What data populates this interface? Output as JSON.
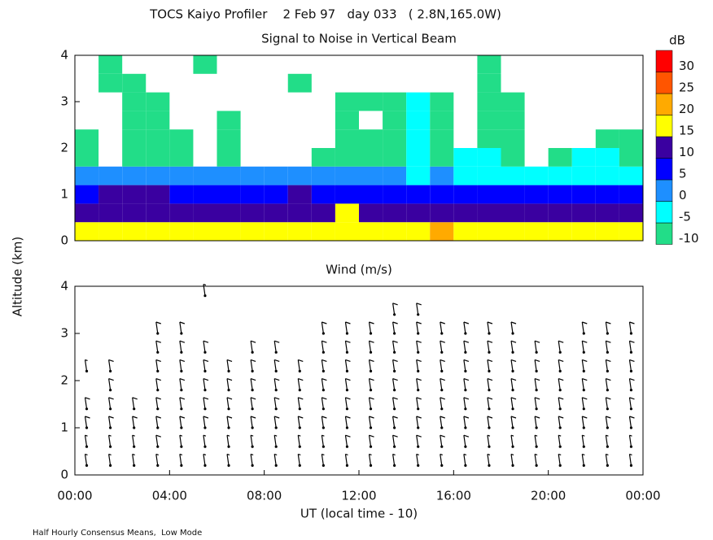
{
  "title": "TOCS Kaiyo Profiler    2 Feb 97   day 033   ( 2.8N,165.0W)",
  "y_label": "Altitude (km)",
  "x_label": "UT (local time - 10)",
  "footer": "Half Hourly Consensus Means,  Low Mode",
  "chart_data": [
    {
      "type": "heatmap",
      "title": "Signal to Noise in Vertical Beam",
      "colorbar": {
        "title": "dB",
        "levels": [
          -10,
          -5,
          0,
          5,
          10,
          15,
          20,
          25,
          30
        ],
        "colors": [
          "#22dd88",
          "#00ffff",
          "#1e8fff",
          "#0000ff",
          "#3a00a0",
          "#ffff00",
          "#ffaa00",
          "#ff5500",
          "#ff0000"
        ]
      },
      "x": [
        0.5,
        1.5,
        2.5,
        3.5,
        4.5,
        5.5,
        6.5,
        7.5,
        8.5,
        9.5,
        10.5,
        11.5,
        12.5,
        13.5,
        14.5,
        15.5,
        16.5,
        17.5,
        18.5,
        19.5,
        20.5,
        21.5,
        22.5,
        23.5
      ],
      "y": [
        0.2,
        0.6,
        1.0,
        1.4,
        1.8,
        2.2,
        2.6,
        3.0,
        3.4,
        3.8
      ],
      "values": [
        [
          16,
          16,
          16,
          16,
          16,
          16,
          16,
          16,
          16,
          16,
          16,
          16,
          17,
          16,
          16,
          22,
          16,
          16,
          17,
          16,
          16,
          16,
          16,
          16
        ],
        [
          11,
          11,
          11,
          12,
          11,
          11,
          11,
          11,
          11,
          11,
          11,
          15,
          12,
          11,
          11,
          12,
          11,
          11,
          12,
          11,
          11,
          11,
          12,
          11
        ],
        [
          7,
          10,
          10,
          10,
          8,
          7,
          7,
          7,
          8,
          10,
          7,
          7,
          7,
          7,
          7,
          7,
          7,
          7,
          7,
          7,
          7,
          7,
          7,
          7
        ],
        [
          2,
          2,
          2,
          2,
          2,
          2,
          2,
          2,
          2,
          2,
          2,
          2,
          2,
          2,
          -3,
          2,
          -3,
          -3,
          -3,
          -3,
          -3,
          -3,
          -3,
          -3
        ],
        [
          -8,
          null,
          -8,
          -8,
          -8,
          null,
          -8,
          null,
          null,
          null,
          -8,
          -8,
          -8,
          -8,
          -3,
          -8,
          -3,
          -3,
          -8,
          null,
          -8,
          -3,
          -3,
          -8
        ],
        [
          -8,
          null,
          -8,
          -8,
          -8,
          null,
          -8,
          null,
          null,
          null,
          null,
          -8,
          -8,
          -8,
          -3,
          -8,
          null,
          -8,
          -8,
          null,
          null,
          null,
          -8,
          -8
        ],
        [
          null,
          null,
          -8,
          -8,
          null,
          null,
          -8,
          null,
          null,
          null,
          null,
          -8,
          null,
          -8,
          -3,
          -8,
          null,
          -8,
          -8,
          null,
          null,
          null,
          null,
          null
        ],
        [
          null,
          null,
          -8,
          -8,
          null,
          null,
          null,
          null,
          null,
          null,
          null,
          -8,
          -8,
          -8,
          -3,
          -8,
          null,
          -8,
          -8,
          null,
          null,
          null,
          null,
          null
        ],
        [
          null,
          -8,
          -8,
          null,
          null,
          null,
          null,
          null,
          null,
          -8,
          null,
          null,
          null,
          null,
          null,
          null,
          null,
          -8,
          null,
          null,
          null,
          null,
          null,
          null
        ],
        [
          null,
          -8,
          null,
          null,
          null,
          -8,
          null,
          null,
          null,
          null,
          null,
          null,
          null,
          null,
          null,
          null,
          null,
          -8,
          null,
          null,
          null,
          null,
          null,
          null
        ]
      ],
      "xlim": [
        0,
        24
      ],
      "ylim": [
        0,
        4
      ],
      "yticks": [
        0,
        1,
        2,
        3,
        4
      ]
    },
    {
      "type": "barbs",
      "title": "Wind (m/s)",
      "color": "#000000",
      "x": [
        0.5,
        1.5,
        2.5,
        3.5,
        4.5,
        5.5,
        6.5,
        7.5,
        8.5,
        9.5,
        10.5,
        11.5,
        12.5,
        13.5,
        14.5,
        15.5,
        16.5,
        17.5,
        18.5,
        19.5,
        20.5,
        21.5,
        22.5,
        23.5
      ],
      "y": [
        0.2,
        0.6,
        1.0,
        1.4,
        1.8,
        2.2,
        2.6,
        3.0,
        3.4,
        3.8
      ],
      "values": [
        [
          5,
          5,
          5,
          5,
          5,
          5,
          5,
          5,
          5,
          5,
          5,
          5,
          5,
          5,
          5,
          5,
          5,
          5,
          5,
          5,
          5,
          5,
          5,
          5
        ],
        [
          5,
          5,
          5,
          10,
          5,
          5,
          5,
          5,
          5,
          5,
          5,
          10,
          10,
          10,
          10,
          10,
          10,
          5,
          5,
          5,
          5,
          5,
          5,
          5
        ],
        [
          10,
          10,
          10,
          10,
          10,
          10,
          10,
          10,
          10,
          10,
          10,
          10,
          10,
          10,
          10,
          10,
          10,
          10,
          10,
          10,
          10,
          10,
          10,
          10
        ],
        [
          10,
          10,
          10,
          10,
          10,
          10,
          10,
          10,
          10,
          10,
          10,
          10,
          10,
          10,
          10,
          10,
          10,
          10,
          10,
          10,
          10,
          10,
          10,
          10
        ],
        [
          null,
          10,
          null,
          10,
          10,
          10,
          10,
          10,
          10,
          10,
          10,
          10,
          10,
          10,
          10,
          10,
          10,
          10,
          10,
          10,
          10,
          10,
          10,
          10
        ],
        [
          5,
          10,
          null,
          10,
          10,
          10,
          10,
          10,
          10,
          10,
          10,
          10,
          10,
          10,
          10,
          10,
          10,
          10,
          10,
          10,
          10,
          10,
          10,
          10
        ],
        [
          null,
          null,
          null,
          10,
          10,
          10,
          null,
          10,
          10,
          null,
          10,
          10,
          10,
          10,
          10,
          10,
          10,
          10,
          10,
          10,
          10,
          10,
          10,
          10
        ],
        [
          null,
          null,
          null,
          10,
          10,
          null,
          null,
          null,
          null,
          null,
          10,
          10,
          10,
          10,
          10,
          10,
          10,
          10,
          10,
          null,
          null,
          10,
          10,
          10
        ],
        [
          null,
          null,
          null,
          null,
          null,
          null,
          null,
          null,
          null,
          null,
          null,
          null,
          null,
          10,
          10,
          null,
          null,
          null,
          null,
          null,
          null,
          null,
          null,
          null
        ],
        [
          null,
          null,
          null,
          null,
          null,
          5,
          null,
          null,
          null,
          null,
          null,
          null,
          null,
          null,
          null,
          null,
          null,
          null,
          null,
          null,
          null,
          null,
          null,
          null
        ]
      ],
      "xlim": [
        0,
        24
      ],
      "ylim": [
        0,
        4
      ],
      "yticks": [
        0,
        1,
        2,
        3,
        4
      ],
      "xticks": [
        {
          "value": 0,
          "label": "00:00"
        },
        {
          "value": 4,
          "label": "04:00"
        },
        {
          "value": 8,
          "label": "08:00"
        },
        {
          "value": 12,
          "label": "12:00"
        },
        {
          "value": 16,
          "label": "16:00"
        },
        {
          "value": 20,
          "label": "20:00"
        },
        {
          "value": 24,
          "label": "00:00"
        }
      ]
    }
  ]
}
